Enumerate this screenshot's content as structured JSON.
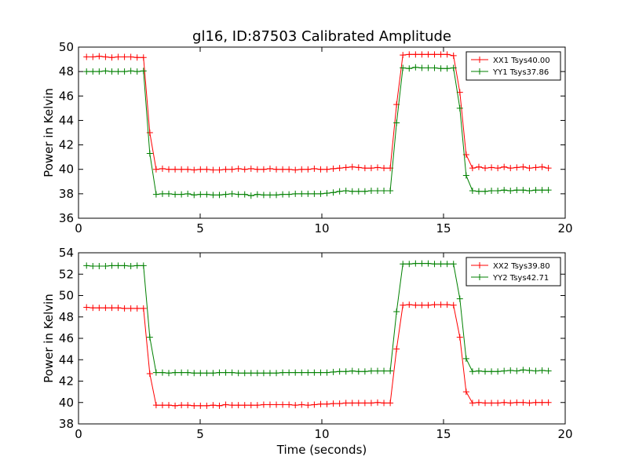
{
  "title": "gl16, ID:87503 Calibrated Amplitude",
  "xlabel": "Time (seconds)",
  "chart_data": [
    {
      "type": "line",
      "title": "gl16, ID:87503 Calibrated Amplitude",
      "xlabel": "",
      "ylabel": "Power in Kelvin",
      "xlim": [
        0,
        20
      ],
      "ylim": [
        36,
        50
      ],
      "xticks": [
        0,
        5,
        10,
        15,
        20
      ],
      "yticks": [
        36,
        38,
        40,
        42,
        44,
        46,
        48,
        50
      ],
      "legend_position": "top-right",
      "series": [
        {
          "name": "XX1 Tsys40.00",
          "color": "#ff0000",
          "x": [
            0.33,
            0.59,
            0.85,
            1.11,
            1.37,
            1.63,
            1.89,
            2.15,
            2.41,
            2.67,
            2.93,
            3.19,
            3.45,
            3.71,
            3.97,
            4.23,
            4.49,
            4.75,
            5.01,
            5.27,
            5.53,
            5.79,
            6.05,
            6.31,
            6.57,
            6.83,
            7.09,
            7.35,
            7.61,
            7.87,
            8.13,
            8.39,
            8.65,
            8.91,
            9.17,
            9.43,
            9.69,
            9.95,
            10.21,
            10.47,
            10.73,
            10.99,
            11.25,
            11.51,
            11.77,
            12.03,
            12.29,
            12.55,
            12.81,
            13.07,
            13.33,
            13.59,
            13.85,
            14.11,
            14.37,
            14.63,
            14.89,
            15.15,
            15.41,
            15.67,
            15.93,
            16.19,
            16.45,
            16.71,
            16.97,
            17.23,
            17.49,
            17.75,
            18.01,
            18.27,
            18.53,
            18.79,
            19.05,
            19.31
          ],
          "y": [
            49.2,
            49.2,
            49.25,
            49.2,
            49.15,
            49.2,
            49.2,
            49.2,
            49.15,
            49.15,
            43.0,
            40.0,
            40.05,
            40.0,
            40.0,
            40.0,
            40.0,
            39.95,
            40.0,
            40.0,
            39.95,
            39.95,
            40.0,
            40.0,
            40.05,
            40.0,
            40.05,
            40.0,
            40.0,
            40.05,
            40.0,
            40.0,
            40.0,
            39.95,
            40.0,
            40.0,
            40.05,
            40.0,
            40.0,
            40.05,
            40.1,
            40.15,
            40.2,
            40.15,
            40.1,
            40.1,
            40.15,
            40.1,
            40.1,
            45.3,
            49.35,
            49.4,
            49.4,
            49.4,
            49.4,
            49.4,
            49.4,
            49.4,
            49.3,
            46.3,
            41.2,
            40.1,
            40.2,
            40.1,
            40.15,
            40.1,
            40.2,
            40.1,
            40.15,
            40.2,
            40.1,
            40.15,
            40.2,
            40.1
          ]
        },
        {
          "name": "YY1 Tsys37.86",
          "color": "#008000",
          "x": [
            0.33,
            0.59,
            0.85,
            1.11,
            1.37,
            1.63,
            1.89,
            2.15,
            2.41,
            2.67,
            2.93,
            3.19,
            3.45,
            3.71,
            3.97,
            4.23,
            4.49,
            4.75,
            5.01,
            5.27,
            5.53,
            5.79,
            6.05,
            6.31,
            6.57,
            6.83,
            7.09,
            7.35,
            7.61,
            7.87,
            8.13,
            8.39,
            8.65,
            8.91,
            9.17,
            9.43,
            9.69,
            9.95,
            10.21,
            10.47,
            10.73,
            10.99,
            11.25,
            11.51,
            11.77,
            12.03,
            12.29,
            12.55,
            12.81,
            13.07,
            13.33,
            13.59,
            13.85,
            14.11,
            14.37,
            14.63,
            14.89,
            15.15,
            15.41,
            15.67,
            15.93,
            16.19,
            16.45,
            16.71,
            16.97,
            17.23,
            17.49,
            17.75,
            18.01,
            18.27,
            18.53,
            18.79,
            19.05,
            19.31
          ],
          "y": [
            48.0,
            48.0,
            48.0,
            48.05,
            48.0,
            48.0,
            48.0,
            48.05,
            48.0,
            48.05,
            41.3,
            37.95,
            38.0,
            38.0,
            37.95,
            37.95,
            38.0,
            37.9,
            37.95,
            37.95,
            37.9,
            37.9,
            37.95,
            38.0,
            37.95,
            37.95,
            37.85,
            37.95,
            37.9,
            37.9,
            37.9,
            37.95,
            37.95,
            38.0,
            38.0,
            38.0,
            38.0,
            38.0,
            38.05,
            38.1,
            38.2,
            38.25,
            38.2,
            38.2,
            38.2,
            38.25,
            38.25,
            38.25,
            38.25,
            43.8,
            48.3,
            48.25,
            48.35,
            48.3,
            48.3,
            48.3,
            48.25,
            48.25,
            48.3,
            45.0,
            39.5,
            38.25,
            38.2,
            38.2,
            38.25,
            38.25,
            38.3,
            38.25,
            38.3,
            38.3,
            38.25,
            38.3,
            38.3,
            38.3
          ]
        }
      ]
    },
    {
      "type": "line",
      "title": "",
      "xlabel": "Time (seconds)",
      "ylabel": "Power in Kelvin",
      "xlim": [
        0,
        20
      ],
      "ylim": [
        38,
        54
      ],
      "xticks": [
        0,
        5,
        10,
        15,
        20
      ],
      "yticks": [
        38,
        40,
        42,
        44,
        46,
        48,
        50,
        52,
        54
      ],
      "legend_position": "top-right",
      "series": [
        {
          "name": "XX2 Tsys39.80",
          "color": "#ff0000",
          "x": [
            0.33,
            0.59,
            0.85,
            1.11,
            1.37,
            1.63,
            1.89,
            2.15,
            2.41,
            2.67,
            2.93,
            3.19,
            3.45,
            3.71,
            3.97,
            4.23,
            4.49,
            4.75,
            5.01,
            5.27,
            5.53,
            5.79,
            6.05,
            6.31,
            6.57,
            6.83,
            7.09,
            7.35,
            7.61,
            7.87,
            8.13,
            8.39,
            8.65,
            8.91,
            9.17,
            9.43,
            9.69,
            9.95,
            10.21,
            10.47,
            10.73,
            10.99,
            11.25,
            11.51,
            11.77,
            12.03,
            12.29,
            12.55,
            12.81,
            13.07,
            13.33,
            13.59,
            13.85,
            14.11,
            14.37,
            14.63,
            14.89,
            15.15,
            15.41,
            15.67,
            15.93,
            16.19,
            16.45,
            16.71,
            16.97,
            17.23,
            17.49,
            17.75,
            18.01,
            18.27,
            18.53,
            18.79,
            19.05,
            19.31
          ],
          "y": [
            48.9,
            48.85,
            48.85,
            48.85,
            48.85,
            48.85,
            48.8,
            48.8,
            48.8,
            48.8,
            42.7,
            39.75,
            39.75,
            39.75,
            39.7,
            39.75,
            39.75,
            39.7,
            39.7,
            39.7,
            39.75,
            39.7,
            39.8,
            39.75,
            39.75,
            39.75,
            39.75,
            39.75,
            39.8,
            39.8,
            39.8,
            39.8,
            39.8,
            39.75,
            39.8,
            39.75,
            39.8,
            39.85,
            39.85,
            39.9,
            39.9,
            39.95,
            39.95,
            39.95,
            39.95,
            39.95,
            40.0,
            39.95,
            39.95,
            45.0,
            49.1,
            49.15,
            49.1,
            49.1,
            49.1,
            49.15,
            49.15,
            49.15,
            49.1,
            46.1,
            41.0,
            39.95,
            40.0,
            39.95,
            39.95,
            39.95,
            40.0,
            39.95,
            40.0,
            40.0,
            39.95,
            40.0,
            40.0,
            40.0
          ]
        },
        {
          "name": "YY2 Tsys42.71",
          "color": "#008000",
          "x": [
            0.33,
            0.59,
            0.85,
            1.11,
            1.37,
            1.63,
            1.89,
            2.15,
            2.41,
            2.67,
            2.93,
            3.19,
            3.45,
            3.71,
            3.97,
            4.23,
            4.49,
            4.75,
            5.01,
            5.27,
            5.53,
            5.79,
            6.05,
            6.31,
            6.57,
            6.83,
            7.09,
            7.35,
            7.61,
            7.87,
            8.13,
            8.39,
            8.65,
            8.91,
            9.17,
            9.43,
            9.69,
            9.95,
            10.21,
            10.47,
            10.73,
            10.99,
            11.25,
            11.51,
            11.77,
            12.03,
            12.29,
            12.55,
            12.81,
            13.07,
            13.33,
            13.59,
            13.85,
            14.11,
            14.37,
            14.63,
            14.89,
            15.15,
            15.41,
            15.67,
            15.93,
            16.19,
            16.45,
            16.71,
            16.97,
            17.23,
            17.49,
            17.75,
            18.01,
            18.27,
            18.53,
            18.79,
            19.05,
            19.31
          ],
          "y": [
            52.8,
            52.75,
            52.75,
            52.75,
            52.8,
            52.8,
            52.8,
            52.75,
            52.8,
            52.8,
            46.1,
            42.8,
            42.8,
            42.75,
            42.8,
            42.8,
            42.8,
            42.75,
            42.75,
            42.75,
            42.75,
            42.8,
            42.8,
            42.8,
            42.75,
            42.75,
            42.75,
            42.75,
            42.75,
            42.75,
            42.75,
            42.8,
            42.8,
            42.8,
            42.8,
            42.8,
            42.8,
            42.8,
            42.8,
            42.85,
            42.9,
            42.9,
            42.95,
            42.9,
            42.9,
            42.95,
            42.95,
            42.95,
            42.95,
            48.5,
            52.95,
            52.95,
            53.0,
            53.0,
            53.0,
            52.95,
            52.95,
            52.95,
            52.95,
            49.7,
            44.1,
            42.9,
            42.95,
            42.9,
            42.9,
            42.9,
            42.95,
            43.0,
            42.95,
            43.05,
            43.0,
            42.95,
            43.0,
            42.95
          ]
        }
      ]
    }
  ]
}
